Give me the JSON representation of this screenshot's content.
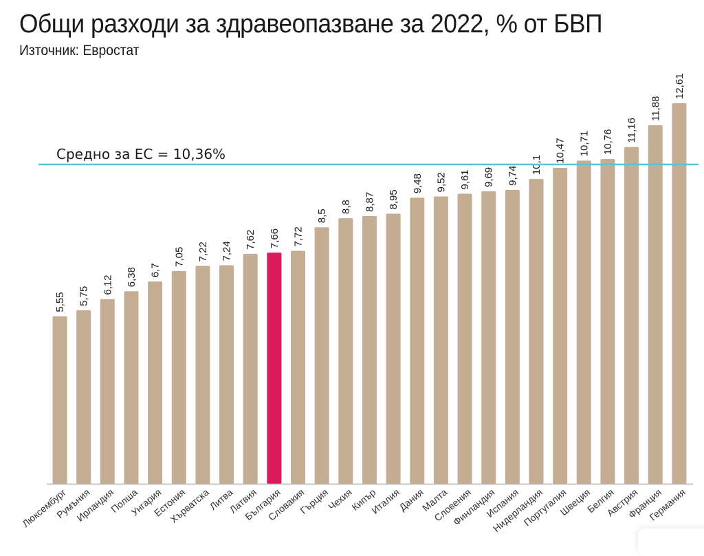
{
  "chart_data": {
    "type": "bar",
    "title": "Общи разходи за здравеопазване за 2022, % от БВП",
    "subtitle": "Източник: Евростат",
    "xlabel": "",
    "ylabel": "",
    "ylim": [
      0,
      12.61
    ],
    "grid": false,
    "categories": [
      "Люксембург",
      "Румъния",
      "Ирландия",
      "Полша",
      "Унгария",
      "Естония",
      "Хърватска",
      "Литва",
      "Латвия",
      "България",
      "Словакия",
      "Гърция",
      "Чехия",
      "Кипър",
      "Италия",
      "Дания",
      "Малта",
      "Словения",
      "Финландия",
      "Испания",
      "Нидерландия",
      "Португалия",
      "Швеция",
      "Белгия",
      "Австрия",
      "Франция",
      "Германия"
    ],
    "values": [
      5.55,
      5.75,
      6.12,
      6.38,
      6.7,
      7.05,
      7.22,
      7.24,
      7.62,
      7.66,
      7.72,
      8.5,
      8.8,
      8.87,
      8.95,
      9.48,
      9.52,
      9.61,
      9.69,
      9.74,
      10.1,
      10.47,
      10.71,
      10.76,
      11.16,
      11.88,
      12.61
    ],
    "value_labels": [
      "5,55",
      "5,75",
      "6,12",
      "6,38",
      "6,7",
      "7,05",
      "7,22",
      "7,24",
      "7,62",
      "7,66",
      "7,72",
      "8,5",
      "8,8",
      "8,87",
      "8,95",
      "9,48",
      "9,52",
      "9,61",
      "9,69",
      "9,74",
      "10,1",
      "10,47",
      "10,71",
      "10,76",
      "11,16",
      "11,88",
      "12,61"
    ],
    "highlight_category": "България",
    "reference_line": {
      "value": 10.36,
      "label": "Средно за ЕС = 10,36%"
    },
    "colors": {
      "bar": "#c4ad93",
      "highlight": "#d81b5a",
      "reference_line": "#5bc4d4",
      "axis": "#b0b0b0"
    }
  }
}
